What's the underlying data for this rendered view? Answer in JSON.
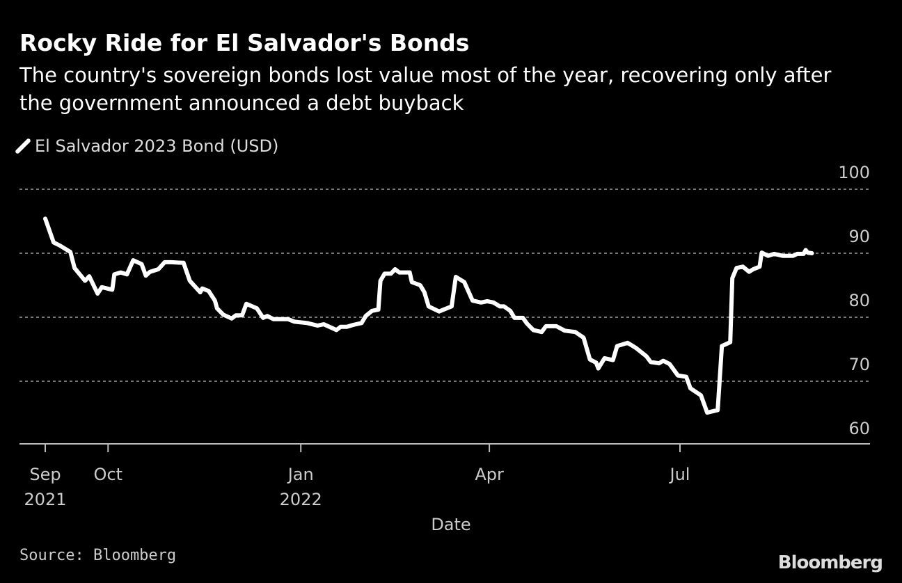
{
  "chart_data": {
    "type": "line",
    "title": "Rocky Ride for El Salvador's Bonds",
    "subtitle": "The country's sovereign bonds lost value most of the year, recovering only after the government announced a debt buyback",
    "xlabel": "Date",
    "ylabel": "",
    "ylim": [
      60,
      100
    ],
    "yticks": [
      "100",
      "90",
      "80",
      "70",
      "60"
    ],
    "ytick_values": [
      100,
      90,
      80,
      70,
      60
    ],
    "xticks": [
      {
        "date": "2021-09-01",
        "label": "Sep",
        "sublabel": "2021"
      },
      {
        "date": "2021-10-01",
        "label": "Oct",
        "sublabel": ""
      },
      {
        "date": "2022-01-01",
        "label": "Jan",
        "sublabel": "2022"
      },
      {
        "date": "2022-04-01",
        "label": "Apr",
        "sublabel": ""
      },
      {
        "date": "2022-07-01",
        "label": "Jul",
        "sublabel": ""
      }
    ],
    "grid": "horizontal dashed",
    "legend_position": "top-left",
    "line_color": "#ffffff",
    "series": [
      {
        "name": "El Salvador 2023 Bond (USD)",
        "x": [
          "2021-09-01",
          "2021-09-05",
          "2021-09-08",
          "2021-09-13",
          "2021-09-15",
          "2021-09-20",
          "2021-09-22",
          "2021-09-26",
          "2021-09-28",
          "2021-10-03",
          "2021-10-04",
          "2021-10-07",
          "2021-10-10",
          "2021-10-13",
          "2021-10-17",
          "2021-10-19",
          "2021-10-21",
          "2021-10-25",
          "2021-10-28",
          "2021-10-31",
          "2021-11-06",
          "2021-11-09",
          "2021-11-14",
          "2021-11-15",
          "2021-11-18",
          "2021-11-21",
          "2021-11-22",
          "2021-11-25",
          "2021-11-29",
          "2021-12-01",
          "2021-12-04",
          "2021-12-06",
          "2021-12-11",
          "2021-12-14",
          "2021-12-16",
          "2021-12-19",
          "2021-12-26",
          "2021-12-29",
          "2022-01-04",
          "2022-01-09",
          "2022-01-12",
          "2022-01-18",
          "2022-01-20",
          "2022-01-23",
          "2022-01-26",
          "2022-01-30",
          "2022-02-01",
          "2022-02-04",
          "2022-02-07",
          "2022-02-08",
          "2022-02-10",
          "2022-02-13",
          "2022-02-15",
          "2022-02-17",
          "2022-02-22",
          "2022-02-23",
          "2022-02-27",
          "2022-03-01",
          "2022-03-03",
          "2022-03-08",
          "2022-03-14",
          "2022-03-16",
          "2022-03-20",
          "2022-03-24",
          "2022-03-28",
          "2022-03-31",
          "2022-04-03",
          "2022-04-06",
          "2022-04-08",
          "2022-04-11",
          "2022-04-13",
          "2022-04-17",
          "2022-04-19",
          "2022-04-22",
          "2022-04-26",
          "2022-04-28",
          "2022-05-03",
          "2022-05-07",
          "2022-05-12",
          "2022-05-16",
          "2022-05-19",
          "2022-05-22",
          "2022-05-23",
          "2022-05-26",
          "2022-05-30",
          "2022-06-01",
          "2022-06-06",
          "2022-06-10",
          "2022-06-15",
          "2022-06-17",
          "2022-06-21",
          "2022-06-23",
          "2022-06-26",
          "2022-06-30",
          "2022-07-04",
          "2022-07-06",
          "2022-07-11",
          "2022-07-14",
          "2022-07-19",
          "2022-07-21",
          "2022-07-25",
          "2022-07-26",
          "2022-07-28",
          "2022-07-31",
          "2022-08-03",
          "2022-08-05",
          "2022-08-08",
          "2022-08-09",
          "2022-08-12",
          "2022-08-15",
          "2022-08-19",
          "2022-08-24",
          "2022-08-26",
          "2022-08-29",
          "2022-08-30",
          "2022-08-31",
          "2022-09-02"
        ],
        "values": [
          95.4,
          91.7,
          91.2,
          90.2,
          87.7,
          85.7,
          86.4,
          83.7,
          84.7,
          84.3,
          86.7,
          87.0,
          86.7,
          88.9,
          88.3,
          86.5,
          87.1,
          87.5,
          88.6,
          88.6,
          88.5,
          85.7,
          83.9,
          84.5,
          84.1,
          82.6,
          81.4,
          80.4,
          79.8,
          80.3,
          80.3,
          82.1,
          81.4,
          79.9,
          80.2,
          79.7,
          79.7,
          79.3,
          79.1,
          78.7,
          78.9,
          78.0,
          78.5,
          78.5,
          78.8,
          79.1,
          80.2,
          81.0,
          81.2,
          85.7,
          86.8,
          86.8,
          87.5,
          87.0,
          87.0,
          85.5,
          85.0,
          83.9,
          81.7,
          80.9,
          81.7,
          86.3,
          85.5,
          82.6,
          82.3,
          82.5,
          82.3,
          81.7,
          81.7,
          81.0,
          79.9,
          79.9,
          79.0,
          78.0,
          77.7,
          78.6,
          78.6,
          77.9,
          77.7,
          76.8,
          73.4,
          72.9,
          72.0,
          73.6,
          73.3,
          75.5,
          76.0,
          75.2,
          73.9,
          73.0,
          72.8,
          73.2,
          72.7,
          70.9,
          70.7,
          68.9,
          67.8,
          65.1,
          65.5,
          75.5,
          76.1,
          86.1,
          87.7,
          87.9,
          87.1,
          87.5,
          87.9,
          90.1,
          89.6,
          89.9,
          89.6,
          89.6,
          89.9,
          89.9,
          90.5,
          90.1,
          90.0
        ]
      }
    ]
  },
  "footer": {
    "source": "Source: Bloomberg",
    "logo": "Bloomberg"
  }
}
